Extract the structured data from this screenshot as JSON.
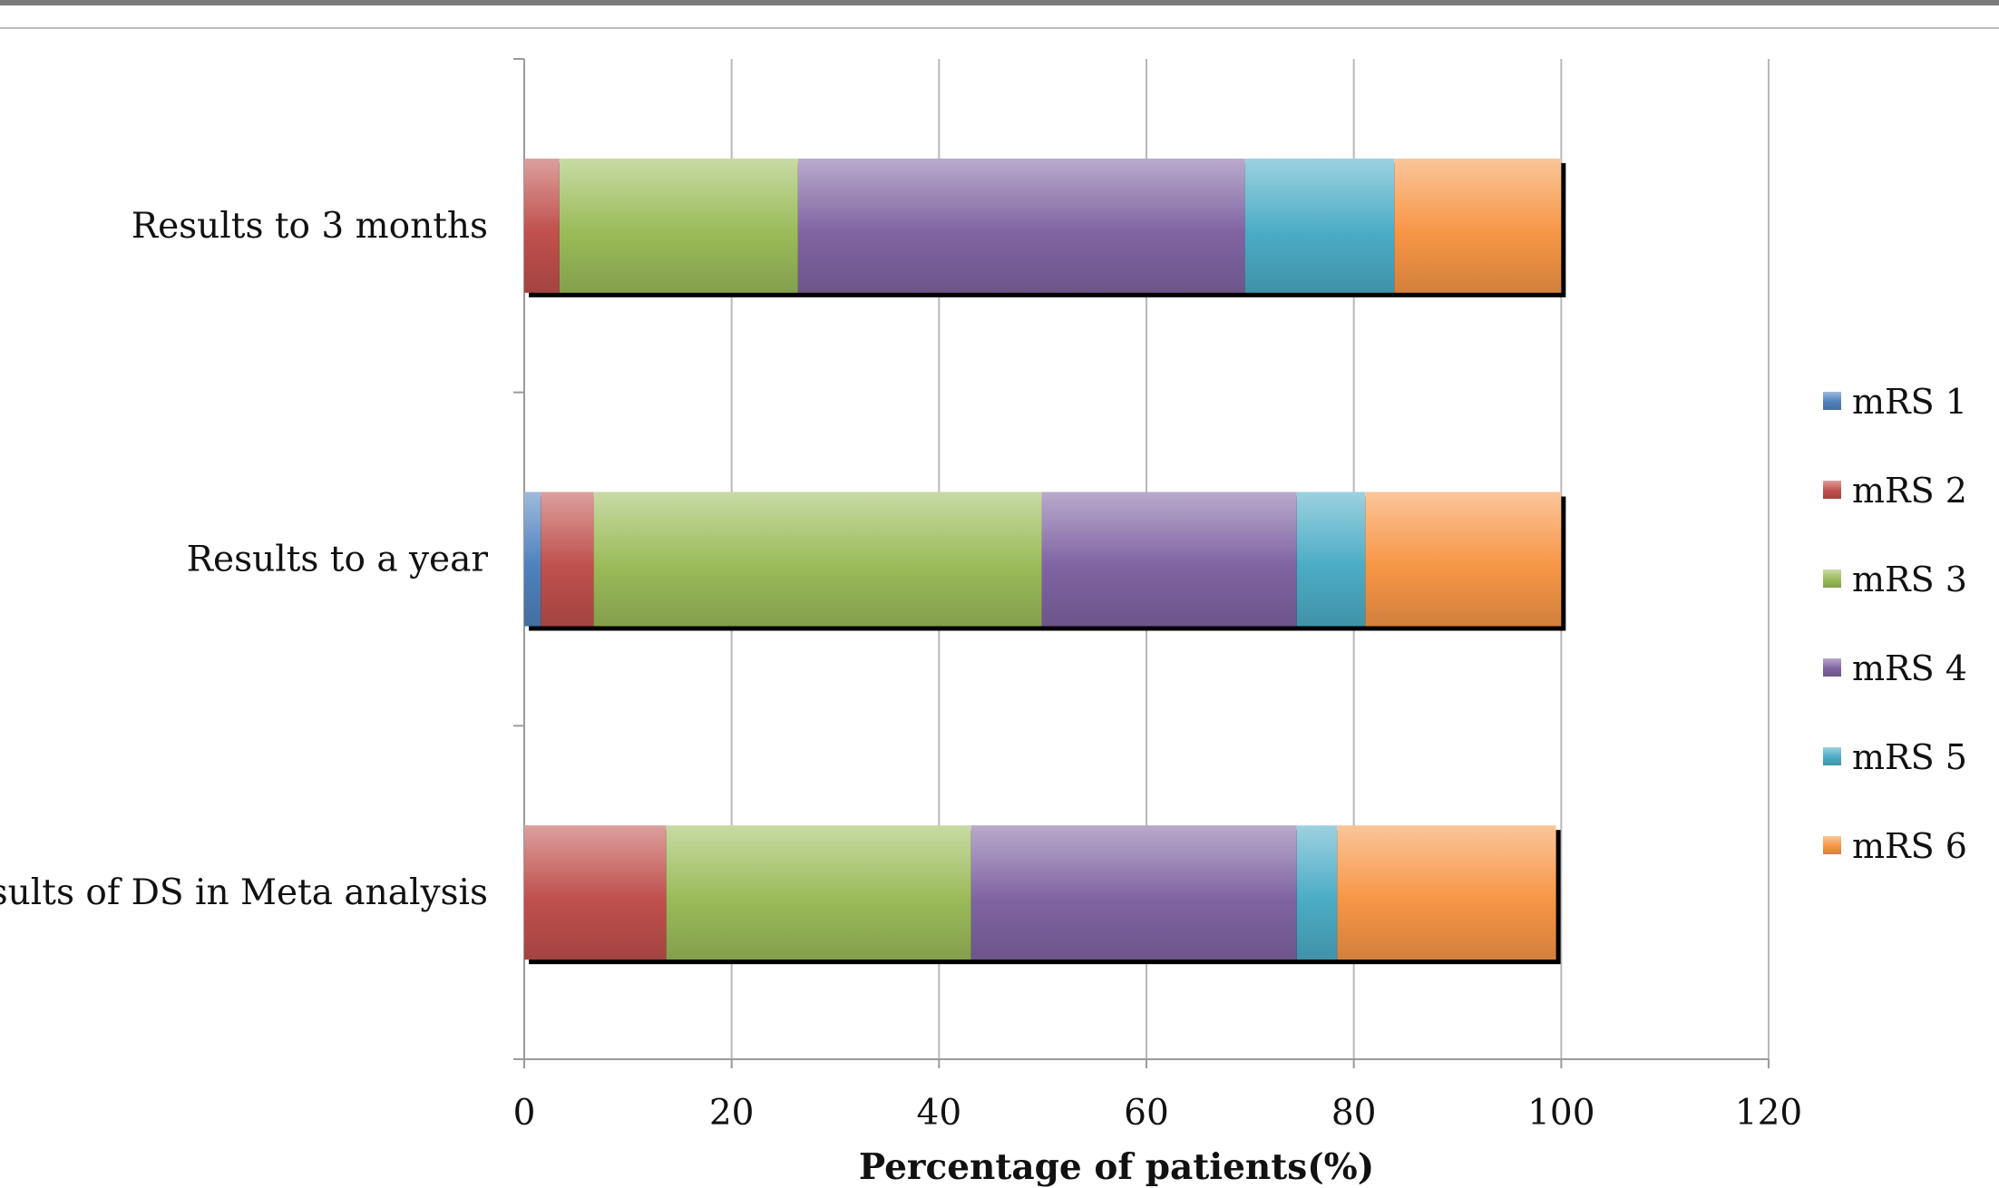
{
  "chart_data": {
    "type": "bar",
    "orientation": "horizontal",
    "stacked": true,
    "categories": [
      "Results to 3 months",
      "Results to a year",
      "Results of DS in Meta analysis"
    ],
    "series": [
      {
        "name": "mRS 1",
        "color": "#4f81bd",
        "values": [
          0,
          1.6,
          0
        ]
      },
      {
        "name": "mRS 2",
        "color": "#c0504d",
        "values": [
          3.4,
          5.1,
          13.7
        ]
      },
      {
        "name": "mRS 3",
        "color": "#9bbb59",
        "values": [
          23.0,
          43.2,
          29.4
        ]
      },
      {
        "name": "mRS 4",
        "color": "#8064a2",
        "values": [
          43.1,
          24.6,
          31.4
        ]
      },
      {
        "name": "mRS 5",
        "color": "#4bacc6",
        "values": [
          14.4,
          6.6,
          3.9
        ]
      },
      {
        "name": "mRS 6",
        "color": "#f79646",
        "values": [
          16.1,
          18.9,
          21.1
        ]
      }
    ],
    "xlabel": "Percentage of patients(%)",
    "ylabel": "",
    "xlim": [
      0,
      120
    ],
    "xticks": [
      0,
      20,
      40,
      60,
      80,
      100,
      120
    ],
    "grid": true,
    "legend_position": "right"
  }
}
